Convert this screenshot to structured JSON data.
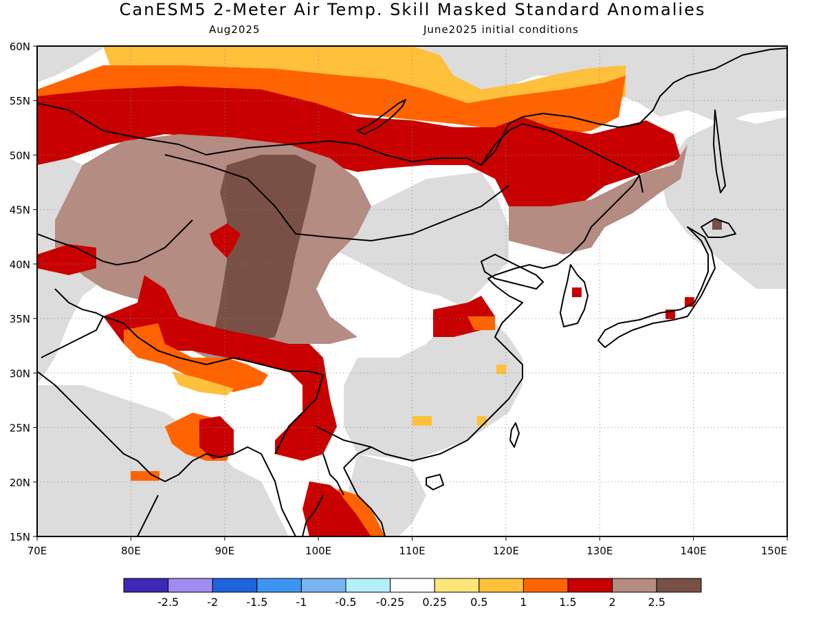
{
  "title": "CanESM5 2-Meter Air Temp. Skill Masked Standard Anomalies",
  "subtitle_left": "Aug2025",
  "subtitle_right": "June2025 initial conditions",
  "map": {
    "lon_range": [
      70,
      150
    ],
    "lat_range": [
      15,
      60
    ],
    "lon_ticks": [
      "70E",
      "80E",
      "90E",
      "100E",
      "110E",
      "120E",
      "130E",
      "140E",
      "150E"
    ],
    "lat_ticks": [
      "15N",
      "20N",
      "25N",
      "30N",
      "35N",
      "40N",
      "45N",
      "50N",
      "55N",
      "60N"
    ],
    "gridlines": "dotted",
    "masked_color": "#dcdcdc"
  },
  "colorbar": {
    "colors": [
      "#3c28b4",
      "#a08cf0",
      "#1e64dc",
      "#3c96f0",
      "#78b4f0",
      "#b4f0fa",
      "#ffffff",
      "#ffe678",
      "#ffc03c",
      "#ff6400",
      "#c80000",
      "#b48c82",
      "#785046"
    ],
    "labels": [
      "-2.5",
      "-2",
      "-1.5",
      "-1",
      "-0.5",
      "-0.25",
      "0.25",
      "0.5",
      "1",
      "1.5",
      "2",
      "2.5"
    ]
  }
}
